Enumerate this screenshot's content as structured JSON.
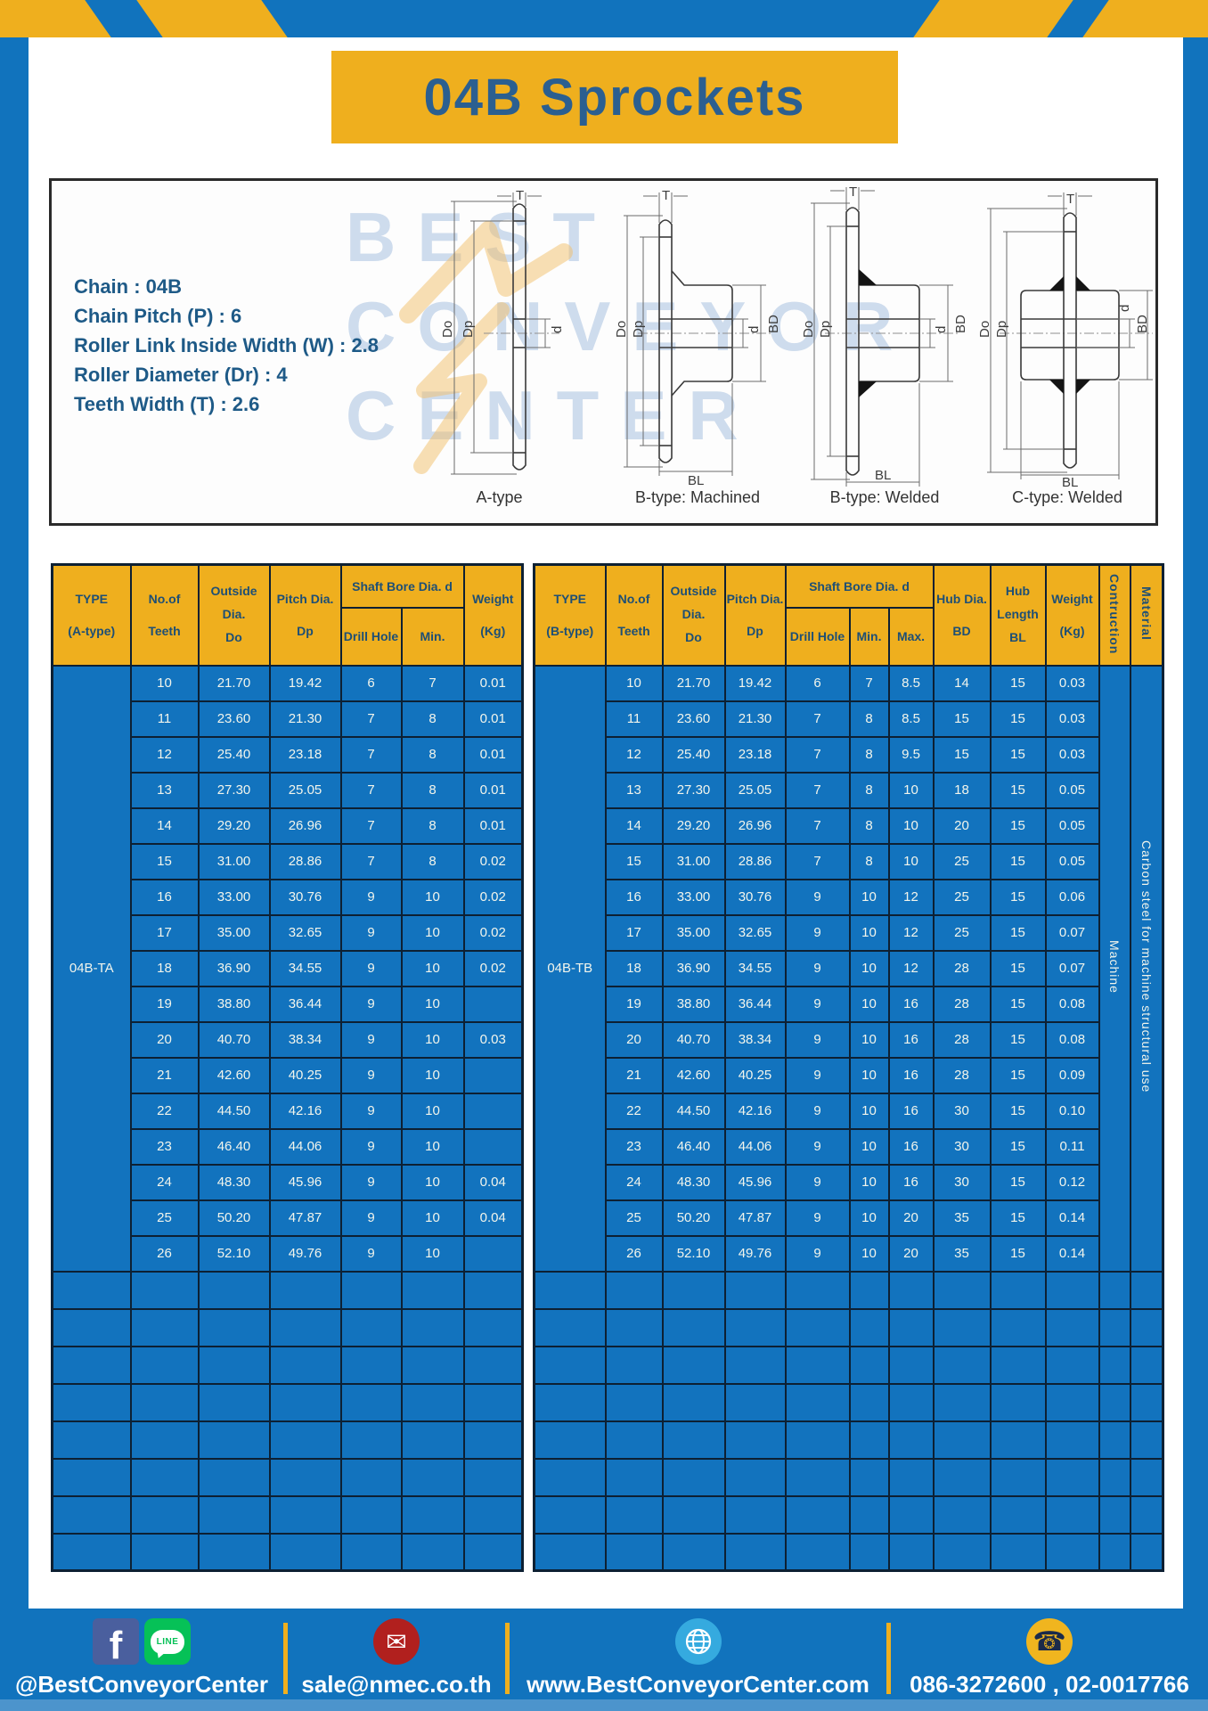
{
  "title": "04B Sprockets",
  "specs": {
    "lines": [
      "Chain : 04B",
      "Chain Pitch (P) : 6",
      "Roller Link Inside Width (W) : 2.8",
      "Roller Diameter (Dr) : 4",
      "Teeth Width (T) : 2.6"
    ]
  },
  "diagram": {
    "watermark_lines": [
      "BEST",
      "CONVEYOR",
      "CENTER"
    ],
    "captions": [
      "A-type",
      "B-type: Machined",
      "B-type: Welded",
      "C-type: Welded"
    ],
    "dims": {
      "t": "T",
      "do": "Do",
      "dp": "Dp",
      "d": "d",
      "bd": "BD",
      "bl": "BL"
    }
  },
  "tables": {
    "left": {
      "header": {
        "type": [
          "TYPE",
          "(A-type)"
        ],
        "teeth": [
          "No.of",
          "Teeth"
        ],
        "outside": [
          "Outside",
          "Dia.",
          "Do"
        ],
        "pitch": [
          "Pitch Dia.",
          "Dp"
        ],
        "shaft_bore": "Shaft Bore Dia. d",
        "drill": "Drill Hole",
        "min": "Min.",
        "weight": [
          "Weight",
          "(Kg)"
        ]
      },
      "type_value": "04B-TA",
      "rows": [
        [
          "10",
          "21.70",
          "19.42",
          "6",
          "7",
          "0.01"
        ],
        [
          "11",
          "23.60",
          "21.30",
          "7",
          "8",
          "0.01"
        ],
        [
          "12",
          "25.40",
          "23.18",
          "7",
          "8",
          "0.01"
        ],
        [
          "13",
          "27.30",
          "25.05",
          "7",
          "8",
          "0.01"
        ],
        [
          "14",
          "29.20",
          "26.96",
          "7",
          "8",
          "0.01"
        ],
        [
          "15",
          "31.00",
          "28.86",
          "7",
          "8",
          "0.02"
        ],
        [
          "16",
          "33.00",
          "30.76",
          "9",
          "10",
          "0.02"
        ],
        [
          "17",
          "35.00",
          "32.65",
          "9",
          "10",
          "0.02"
        ],
        [
          "18",
          "36.90",
          "34.55",
          "9",
          "10",
          "0.02"
        ],
        [
          "19",
          "38.80",
          "36.44",
          "9",
          "10",
          ""
        ],
        [
          "20",
          "40.70",
          "38.34",
          "9",
          "10",
          "0.03"
        ],
        [
          "21",
          "42.60",
          "40.25",
          "9",
          "10",
          ""
        ],
        [
          "22",
          "44.50",
          "42.16",
          "9",
          "10",
          ""
        ],
        [
          "23",
          "46.40",
          "44.06",
          "9",
          "10",
          ""
        ],
        [
          "24",
          "48.30",
          "45.96",
          "9",
          "10",
          "0.04"
        ],
        [
          "25",
          "50.20",
          "47.87",
          "9",
          "10",
          "0.04"
        ],
        [
          "26",
          "52.10",
          "49.76",
          "9",
          "10",
          ""
        ]
      ],
      "empty_row_count": 8
    },
    "right": {
      "header": {
        "type": [
          "TYPE",
          "(B-type)"
        ],
        "teeth": [
          "No.of",
          "Teeth"
        ],
        "outside": [
          "Outside",
          "Dia.",
          "Do"
        ],
        "pitch": [
          "Pitch Dia.",
          "Dp"
        ],
        "shaft_bore": "Shaft Bore Dia. d",
        "drill": "Drill Hole",
        "min": "Min.",
        "max": "Max.",
        "hub_dia": [
          "Hub Dia.",
          "BD"
        ],
        "hub_len": [
          "Hub",
          "Length",
          "BL"
        ],
        "weight": [
          "Weight",
          "(Kg)"
        ],
        "construction": "Contruction",
        "material": "Material"
      },
      "type_value": "04B-TB",
      "construction_value": "Machine",
      "material_value": "Carbon steel for machine structural use",
      "rows": [
        [
          "10",
          "21.70",
          "19.42",
          "6",
          "7",
          "8.5",
          "14",
          "15",
          "0.03"
        ],
        [
          "11",
          "23.60",
          "21.30",
          "7",
          "8",
          "8.5",
          "15",
          "15",
          "0.03"
        ],
        [
          "12",
          "25.40",
          "23.18",
          "7",
          "8",
          "9.5",
          "15",
          "15",
          "0.03"
        ],
        [
          "13",
          "27.30",
          "25.05",
          "7",
          "8",
          "10",
          "18",
          "15",
          "0.05"
        ],
        [
          "14",
          "29.20",
          "26.96",
          "7",
          "8",
          "10",
          "20",
          "15",
          "0.05"
        ],
        [
          "15",
          "31.00",
          "28.86",
          "7",
          "8",
          "10",
          "25",
          "15",
          "0.05"
        ],
        [
          "16",
          "33.00",
          "30.76",
          "9",
          "10",
          "12",
          "25",
          "15",
          "0.06"
        ],
        [
          "17",
          "35.00",
          "32.65",
          "9",
          "10",
          "12",
          "25",
          "15",
          "0.07"
        ],
        [
          "18",
          "36.90",
          "34.55",
          "9",
          "10",
          "12",
          "28",
          "15",
          "0.07"
        ],
        [
          "19",
          "38.80",
          "36.44",
          "9",
          "10",
          "16",
          "28",
          "15",
          "0.08"
        ],
        [
          "20",
          "40.70",
          "38.34",
          "9",
          "10",
          "16",
          "28",
          "15",
          "0.08"
        ],
        [
          "21",
          "42.60",
          "40.25",
          "9",
          "10",
          "16",
          "28",
          "15",
          "0.09"
        ],
        [
          "22",
          "44.50",
          "42.16",
          "9",
          "10",
          "16",
          "30",
          "15",
          "0.10"
        ],
        [
          "23",
          "46.40",
          "44.06",
          "9",
          "10",
          "16",
          "30",
          "15",
          "0.11"
        ],
        [
          "24",
          "48.30",
          "45.96",
          "9",
          "10",
          "16",
          "30",
          "15",
          "0.12"
        ],
        [
          "25",
          "50.20",
          "47.87",
          "9",
          "10",
          "20",
          "35",
          "15",
          "0.14"
        ],
        [
          "26",
          "52.10",
          "49.76",
          "9",
          "10",
          "20",
          "35",
          "15",
          "0.14"
        ]
      ],
      "empty_row_count": 8
    }
  },
  "footer": {
    "social_label": "@BestConveyorCenter",
    "email": "sale@nmec.co.th",
    "website": "www.BestConveyorCenter.com",
    "phones": "086-3272600 , 02-0017766",
    "line_text": "LINE",
    "facebook_letter": "f",
    "email_glyph": "✉",
    "phone_glyph": "☎"
  },
  "colors": {
    "frame-blue": "#1173BD",
    "stripe-yellow": "#EFAF1E",
    "cell-blue": "#1273BE",
    "border-navy": "#0D2033",
    "header-text": "#1E4F75",
    "title-text": "#2B5F90",
    "spec-text": "#1E5A87",
    "data-text": "#F2F5EC",
    "fb-blue": "#4A5F9E",
    "line-green": "#06C157",
    "mail-red": "#B1201E",
    "globe-blue": "#35AADF",
    "phone-yellow": "#F0B51F"
  }
}
